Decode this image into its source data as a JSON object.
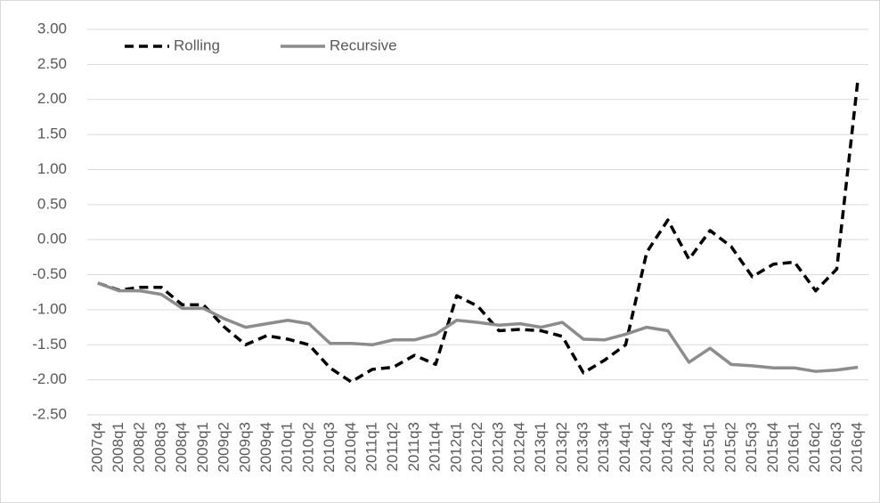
{
  "chart_data": {
    "type": "line",
    "categories": [
      "2007q4",
      "2008q1",
      "2008q2",
      "2008q3",
      "2008q4",
      "2009q1",
      "2009q2",
      "2009q3",
      "2009q4",
      "2010q1",
      "2010q2",
      "2010q3",
      "2010q4",
      "2011q1",
      "2011q2",
      "2011q3",
      "2011q4",
      "2012q1",
      "2012q2",
      "2012q3",
      "2012q4",
      "2013q1",
      "2013q2",
      "2013q3",
      "2013q4",
      "2014q1",
      "2014q2",
      "2014q3",
      "2014q4",
      "2015q1",
      "2015q2",
      "2015q3",
      "2015q4",
      "2016q1",
      "2016q2",
      "2016q3",
      "2016q4"
    ],
    "series": [
      {
        "name": "Rolling",
        "color": "#000000",
        "dashed": true,
        "values": [
          -0.62,
          -0.72,
          -0.68,
          -0.68,
          -0.93,
          -0.93,
          -1.25,
          -1.5,
          -1.37,
          -1.42,
          -1.5,
          -1.83,
          -2.03,
          -1.85,
          -1.82,
          -1.65,
          -1.78,
          -0.8,
          -0.95,
          -1.3,
          -1.28,
          -1.3,
          -1.38,
          -1.9,
          -1.72,
          -1.5,
          -0.18,
          0.28,
          -0.28,
          0.13,
          -0.1,
          -0.53,
          -0.35,
          -0.32,
          -0.73,
          -0.42,
          2.28
        ]
      },
      {
        "name": "Recursive",
        "color": "#8c8c8c",
        "dashed": false,
        "values": [
          -0.62,
          -0.73,
          -0.73,
          -0.78,
          -0.98,
          -0.98,
          -1.13,
          -1.25,
          -1.2,
          -1.15,
          -1.2,
          -1.48,
          -1.48,
          -1.5,
          -1.43,
          -1.43,
          -1.35,
          -1.15,
          -1.18,
          -1.22,
          -1.2,
          -1.25,
          -1.18,
          -1.42,
          -1.43,
          -1.35,
          -1.25,
          -1.3,
          -1.75,
          -1.55,
          -1.78,
          -1.8,
          -1.83,
          -1.83,
          -1.88,
          -1.86,
          -1.82
        ]
      }
    ],
    "ylim": [
      -2.5,
      3
    ],
    "yticks": [
      {
        "value": -2.5,
        "label": "-2.50"
      },
      {
        "value": -2,
        "label": "-2.00"
      },
      {
        "value": -1.5,
        "label": "-1.50"
      },
      {
        "value": -1,
        "label": "-1.00"
      },
      {
        "value": -0.5,
        "label": "-0.50"
      },
      {
        "value": 0,
        "label": "0.00"
      },
      {
        "value": 0.5,
        "label": "0.50"
      },
      {
        "value": 1,
        "label": "1.00"
      },
      {
        "value": 1.5,
        "label": "1.50"
      },
      {
        "value": 2,
        "label": "2.00"
      },
      {
        "value": 2.5,
        "label": "2.50"
      },
      {
        "value": 3,
        "label": "3.00"
      }
    ],
    "grid": true,
    "legend": "top-left"
  }
}
